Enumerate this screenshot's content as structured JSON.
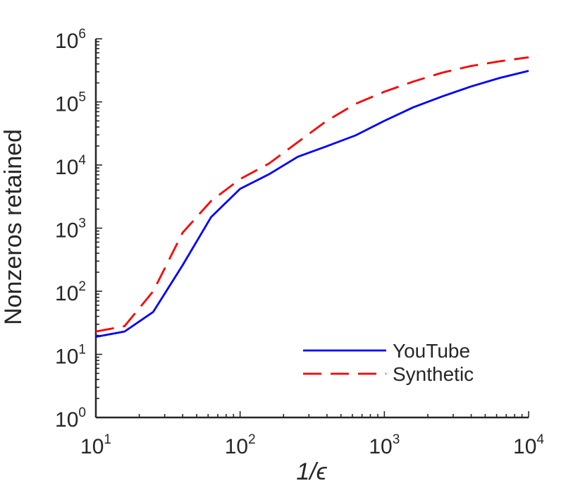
{
  "chart_data": {
    "type": "line",
    "title": "",
    "xlabel": "1/ϵ",
    "ylabel": "Nonzeros retained",
    "xscale": "log",
    "yscale": "log",
    "xlim": [
      10,
      10000
    ],
    "ylim": [
      1,
      1000000
    ],
    "grid": false,
    "legend_position": "bottom-right",
    "x_ticks": [
      {
        "base": "10",
        "exp": "1",
        "value": 10
      },
      {
        "base": "10",
        "exp": "2",
        "value": 100
      },
      {
        "base": "10",
        "exp": "3",
        "value": 1000
      },
      {
        "base": "10",
        "exp": "4",
        "value": 10000
      }
    ],
    "y_ticks": [
      {
        "base": "10",
        "exp": "0",
        "value": 1
      },
      {
        "base": "10",
        "exp": "1",
        "value": 10
      },
      {
        "base": "10",
        "exp": "2",
        "value": 100
      },
      {
        "base": "10",
        "exp": "3",
        "value": 1000
      },
      {
        "base": "10",
        "exp": "4",
        "value": 10000
      },
      {
        "base": "10",
        "exp": "5",
        "value": 100000
      },
      {
        "base": "10",
        "exp": "6",
        "value": 1000000
      }
    ],
    "series": [
      {
        "name": "YouTube",
        "color": "#0000ff",
        "dash": "solid",
        "x": [
          10,
          15.8,
          25,
          40,
          63,
          100,
          158,
          251,
          398,
          631,
          1000,
          1585,
          2512,
          3981,
          6310,
          10000
        ],
        "y": [
          19,
          23,
          47,
          260,
          1500,
          4200,
          7100,
          13500,
          19800,
          29500,
          50000,
          82000,
          122000,
          175000,
          240000,
          310000
        ]
      },
      {
        "name": "Synthetic",
        "color": "#ff0000",
        "dash": "dashed",
        "x": [
          10,
          15.8,
          25,
          40,
          63,
          100,
          158,
          251,
          398,
          631,
          1000,
          1585,
          2512,
          3981,
          6310,
          10000
        ],
        "y": [
          23,
          28,
          100,
          850,
          2700,
          6000,
          10500,
          23000,
          50000,
          93000,
          145000,
          210000,
          290000,
          370000,
          440000,
          510000
        ]
      }
    ]
  }
}
